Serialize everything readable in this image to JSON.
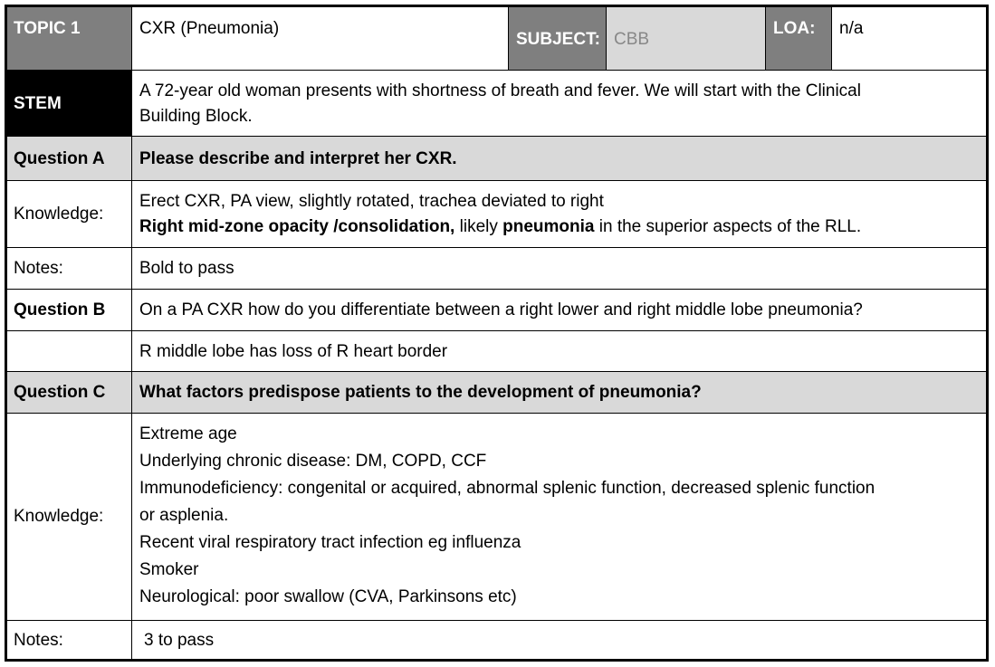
{
  "header": {
    "topic_label": "TOPIC 1",
    "topic_value": "CXR (Pneumonia)",
    "subject_label": "SUBJECT:",
    "subject_value": "CBB",
    "loa_label": "LOA:",
    "loa_value": "n/a"
  },
  "stem": {
    "label": "STEM",
    "lines": [
      "A 72-year old woman presents with shortness of breath and fever. We will start with the Clinical",
      "Building Block."
    ]
  },
  "question_a": {
    "label": "Question A",
    "text": "Please describe and interpret her CXR.",
    "knowledge_label": "Knowledge:",
    "knowledge_line1": "Erect CXR, PA view, slightly rotated, trachea deviated to right",
    "knowledge_line2_bold1": "Right mid-zone opacity /consolidation,",
    "knowledge_line2_text1": " likely ",
    "knowledge_line2_bold2": "pneumonia",
    "knowledge_line2_text2": " in the superior aspects of the RLL.",
    "notes_label": "Notes:",
    "notes_text": "Bold to pass"
  },
  "question_b": {
    "label": "Question B",
    "text": "On a PA CXR how do you differentiate between a right lower and right middle lobe pneumonia?",
    "answer": "R middle lobe has loss of R heart border"
  },
  "question_c": {
    "label": "Question C",
    "text": "What factors predispose patients to the development of pneumonia?",
    "knowledge_label": "Knowledge:",
    "knowledge_lines": [
      "Extreme age",
      "Underlying chronic disease: DM, COPD, CCF",
      "Immunodeficiency: congenital or acquired, abnormal splenic function, decreased splenic function",
      "or asplenia.",
      "Recent viral respiratory tract infection eg influenza",
      "Smoker",
      "Neurological: poor swallow (CVA, Parkinsons etc)"
    ],
    "notes_label": "Notes:",
    "notes_text": "3 to pass"
  }
}
